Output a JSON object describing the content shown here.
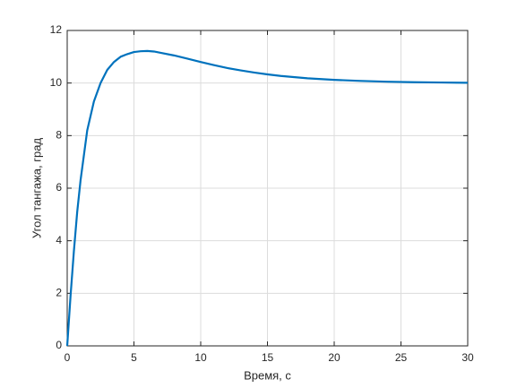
{
  "chart_data": {
    "type": "line",
    "xlabel": "Время, с",
    "ylabel": "Угол тангажа, град",
    "series": [
      {
        "color": "#0072bd",
        "x": [
          0,
          0.25,
          0.5,
          0.75,
          1,
          1.5,
          2,
          2.5,
          3,
          3.5,
          4,
          4.5,
          5,
          5.5,
          6,
          6.5,
          7,
          8,
          9,
          10,
          11,
          12,
          13,
          14,
          15,
          16,
          18,
          20,
          22,
          24,
          26,
          28,
          30
        ],
        "values": [
          0,
          1.9,
          3.6,
          5.1,
          6.3,
          8.2,
          9.3,
          10.0,
          10.5,
          10.8,
          11.0,
          11.1,
          11.18,
          11.21,
          11.22,
          11.2,
          11.15,
          11.05,
          10.93,
          10.8,
          10.68,
          10.57,
          10.48,
          10.4,
          10.33,
          10.27,
          10.18,
          10.12,
          10.08,
          10.05,
          10.03,
          10.02,
          10.01
        ]
      }
    ],
    "xlim": [
      0,
      30
    ],
    "xticks": [
      0,
      5,
      10,
      15,
      20,
      25,
      30
    ],
    "ylim": [
      0,
      12
    ],
    "yticks": [
      0,
      2,
      4,
      6,
      8,
      10,
      12
    ],
    "grid": true
  }
}
